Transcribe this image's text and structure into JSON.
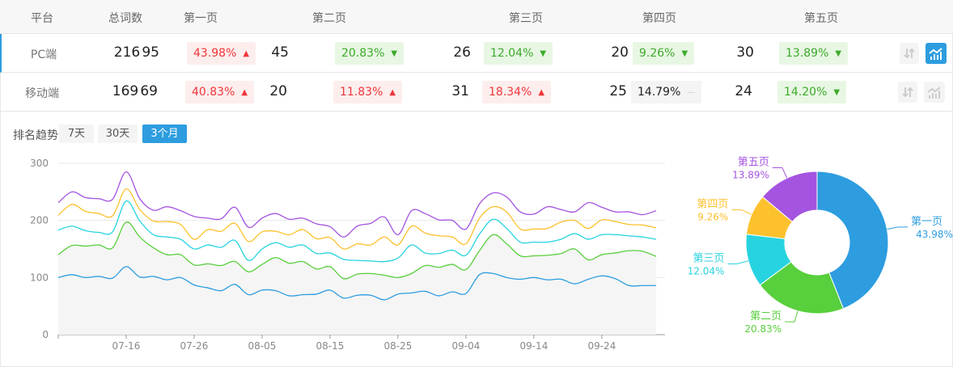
{
  "table": {
    "headers": [
      "平台",
      "总词数",
      "第一页",
      "第二页",
      "第三页",
      "第四页",
      "第五页"
    ],
    "rows": [
      {
        "platform": "PC端",
        "total": "216",
        "active": true,
        "pages": [
          {
            "count": "95",
            "pct": "43.98%",
            "trend": "up"
          },
          {
            "count": "45",
            "pct": "20.83%",
            "trend": "down"
          },
          {
            "count": "26",
            "pct": "12.04%",
            "trend": "down"
          },
          {
            "count": "20",
            "pct": "9.26%",
            "trend": "down"
          },
          {
            "count": "30",
            "pct": "13.89%",
            "trend": "down"
          }
        ]
      },
      {
        "platform": "移动端",
        "total": "169",
        "active": false,
        "pages": [
          {
            "count": "69",
            "pct": "40.83%",
            "trend": "up"
          },
          {
            "count": "20",
            "pct": "11.83%",
            "trend": "up"
          },
          {
            "count": "31",
            "pct": "18.34%",
            "trend": "up"
          },
          {
            "count": "25",
            "pct": "14.79%",
            "trend": "flat"
          },
          {
            "count": "24",
            "pct": "14.20%",
            "trend": "down"
          }
        ]
      }
    ],
    "icons": {
      "sort": "sort-arrows-icon",
      "chart": "bar-trend-chart-icon",
      "up": "triangle-up",
      "down": "triangle-down",
      "flat": "dash"
    }
  },
  "trend": {
    "label": "排名趋势",
    "ranges": [
      "7天",
      "30天",
      "3个月"
    ],
    "selected": "3个月"
  },
  "colors": {
    "accent": "#2d9de0",
    "up": "#f0363b",
    "down": "#3daa2a"
  },
  "chart_data": [
    {
      "type": "area",
      "stacked": true,
      "x_start": "07-06",
      "x_step_days": 2,
      "xticks": [
        "07-16",
        "07-26",
        "08-05",
        "08-15",
        "08-25",
        "09-04",
        "09-14",
        "09-24"
      ],
      "yticks": [
        "0",
        "100",
        "200",
        "300"
      ],
      "ylim": [
        0,
        300
      ],
      "grid": true,
      "series": [
        {
          "name": "第一页",
          "color": "#2d9de0",
          "values": [
            100,
            105,
            100,
            102,
            99,
            119,
            101,
            102,
            96,
            100,
            87,
            82,
            77,
            88,
            70,
            78,
            77,
            68,
            70,
            71,
            78,
            64,
            69,
            69,
            61,
            71,
            73,
            76,
            68,
            75,
            72,
            105,
            107,
            100,
            97,
            100,
            96,
            97,
            89,
            97,
            103,
            98,
            86,
            86,
            86
          ]
        },
        {
          "name": "第二页",
          "color": "#58cf3c",
          "values": [
            40,
            51,
            55,
            55,
            53,
            78,
            70,
            50,
            44,
            40,
            35,
            42,
            44,
            40,
            40,
            45,
            58,
            57,
            58,
            44,
            41,
            34,
            37,
            38,
            43,
            29,
            34,
            45,
            50,
            48,
            42,
            42,
            68,
            59,
            41,
            38,
            43,
            45,
            61,
            34,
            37,
            45,
            61,
            60,
            51
          ]
        },
        {
          "name": "第三页",
          "color": "#27d3e0",
          "values": [
            43,
            34,
            27,
            22,
            28,
            37,
            28,
            23,
            31,
            27,
            28,
            33,
            32,
            37,
            20,
            27,
            26,
            28,
            29,
            27,
            24,
            34,
            24,
            22,
            24,
            34,
            50,
            22,
            24,
            25,
            25,
            29,
            27,
            27,
            24,
            24,
            23,
            25,
            27,
            36,
            35,
            32,
            26,
            25,
            30
          ]
        },
        {
          "name": "第四页",
          "color": "#fcc12d",
          "values": [
            26,
            38,
            34,
            33,
            28,
            21,
            20,
            24,
            27,
            26,
            17,
            27,
            28,
            30,
            33,
            30,
            20,
            22,
            27,
            26,
            27,
            18,
            29,
            28,
            43,
            23,
            33,
            35,
            31,
            23,
            20,
            28,
            22,
            29,
            23,
            23,
            24,
            30,
            23,
            19,
            26,
            23,
            20,
            21,
            20
          ]
        },
        {
          "name": "第五页",
          "color": "#a454e0",
          "values": [
            22,
            22,
            24,
            26,
            29,
            30,
            19,
            19,
            26,
            24,
            40,
            20,
            22,
            28,
            25,
            24,
            31,
            27,
            20,
            26,
            19,
            21,
            31,
            38,
            35,
            18,
            27,
            34,
            28,
            29,
            26,
            25,
            24,
            26,
            30,
            26,
            38,
            22,
            15,
            45,
            22,
            17,
            22,
            18,
            30
          ]
        }
      ]
    },
    {
      "type": "pie",
      "donut": true,
      "slices": [
        {
          "name": "第一页",
          "value": 43.98,
          "label": "43.98%",
          "color": "#2d9de0"
        },
        {
          "name": "第二页",
          "value": 20.83,
          "label": "20.83%",
          "color": "#58cf3c"
        },
        {
          "name": "第三页",
          "value": 12.04,
          "label": "12.04%",
          "color": "#27d3e0"
        },
        {
          "name": "第四页",
          "value": 9.26,
          "label": "9.26%",
          "color": "#fcc12d"
        },
        {
          "name": "第五页",
          "value": 13.89,
          "label": "13.89%",
          "color": "#a454e0"
        }
      ]
    }
  ]
}
